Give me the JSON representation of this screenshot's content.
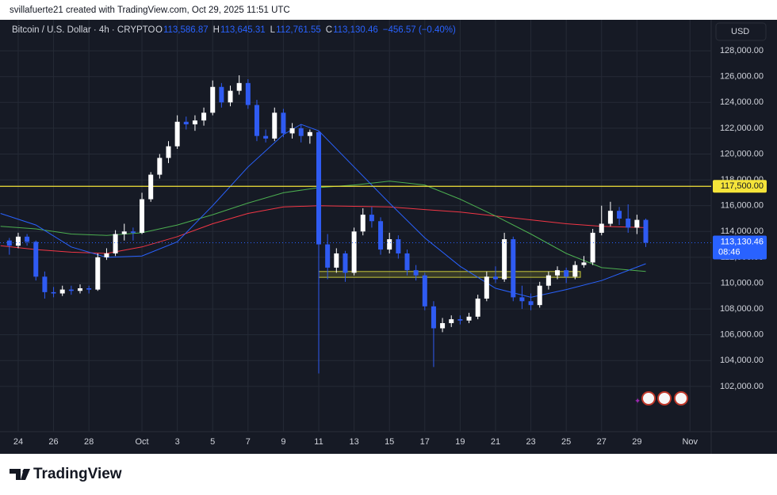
{
  "caption": "svillafuerte21 created with TradingView.com, Oct 29, 2025 11:51 UTC",
  "footer": "TradingView",
  "chart_data": {
    "type": "candlestick",
    "symbol": "Bitcoin / U.S. Dollar · 4h · CRYPTO",
    "ohlc": [
      {
        "key": "O",
        "text": "113,586.87"
      },
      {
        "key": "H",
        "text": "113,645.31"
      },
      {
        "key": "L",
        "text": "112,761.55"
      },
      {
        "key": "C",
        "text": "113,130.46"
      }
    ],
    "change": "−456.57 (−0.40%)",
    "currency": "USD",
    "up_color": "#ffffff",
    "down_color": "#2f5bf2",
    "grid": true,
    "ylim": [
      98800,
      130400
    ],
    "yticks": [
      {
        "value": 102000,
        "label": "102,000.00"
      },
      {
        "value": 104000,
        "label": "104,000.00"
      },
      {
        "value": 106000,
        "label": "106,000.00"
      },
      {
        "value": 108000,
        "label": "108,000.00"
      },
      {
        "value": 110000,
        "label": "110,000.00"
      },
      {
        "value": 112000,
        "label": "112,000.00"
      },
      {
        "value": 114000,
        "label": "114,000.00"
      },
      {
        "value": 116000,
        "label": "116,000.00"
      },
      {
        "value": 118000,
        "label": "118,000.00"
      },
      {
        "value": 120000,
        "label": "120,000.00"
      },
      {
        "value": 122000,
        "label": "122,000.00"
      },
      {
        "value": 124000,
        "label": "124,000.00"
      },
      {
        "value": 126000,
        "label": "126,000.00"
      },
      {
        "value": 128000,
        "label": "128,000.00"
      }
    ],
    "xlim": [
      -1.03,
      39.2
    ],
    "xticks": [
      {
        "value": 0,
        "label": "24"
      },
      {
        "value": 2,
        "label": "26"
      },
      {
        "value": 4,
        "label": "28"
      },
      {
        "value": 7,
        "label": "Oct"
      },
      {
        "value": 9,
        "label": "3"
      },
      {
        "value": 11,
        "label": "5"
      },
      {
        "value": 13,
        "label": "7"
      },
      {
        "value": 15,
        "label": "9"
      },
      {
        "value": 17,
        "label": "11"
      },
      {
        "value": 19,
        "label": "13"
      },
      {
        "value": 21,
        "label": "15"
      },
      {
        "value": 23,
        "label": "17"
      },
      {
        "value": 25,
        "label": "19"
      },
      {
        "value": 27,
        "label": "21"
      },
      {
        "value": 29,
        "label": "23"
      },
      {
        "value": 31,
        "label": "25"
      },
      {
        "value": 33,
        "label": "27"
      },
      {
        "value": 35,
        "label": "29"
      },
      {
        "value": 38,
        "label": "Nov"
      }
    ],
    "series": [
      {
        "x": [
          -0.5,
          0,
          0.5,
          1,
          1.5,
          2,
          2.5,
          3,
          3.5,
          4,
          4.5,
          5,
          5.5,
          6,
          6.5,
          7,
          7.5,
          8,
          8.5,
          9,
          9.5,
          10,
          10.5,
          11,
          11.5,
          12,
          12.5,
          13,
          13.5,
          14,
          14.5,
          15,
          15.5,
          16,
          16.5,
          17,
          17.5,
          18,
          18.5,
          19,
          19.5,
          20,
          20.5,
          21,
          21.5,
          22,
          22.5,
          23,
          23.5,
          24,
          24.5,
          25,
          25.5,
          26,
          26.5,
          27,
          27.5,
          28,
          28.5,
          29,
          29.5,
          30,
          30.5,
          31,
          31.5,
          32,
          32.5,
          33,
          33.5,
          34,
          34.5,
          35,
          35.5
        ],
        "open": [
          113300,
          112900,
          113600,
          113200,
          110500,
          109300,
          109200,
          109500,
          109400,
          109600,
          109500,
          112000,
          112300,
          113800,
          114000,
          113900,
          116500,
          118400,
          119700,
          120600,
          122500,
          122300,
          122600,
          123200,
          125200,
          124000,
          124900,
          125500,
          123800,
          121400,
          121200,
          123200,
          121600,
          122000,
          121400,
          121700,
          113000,
          111200,
          112300,
          110800,
          114000,
          115300,
          114800,
          112600,
          113400,
          112300,
          111000,
          110600,
          108200,
          106500,
          106900,
          107200,
          107100,
          107400,
          108800,
          110500,
          110300,
          113400,
          108900,
          108600,
          108300,
          109800,
          110600,
          111000,
          110500,
          111400,
          111600,
          113900,
          114600,
          115600,
          115000,
          114300,
          114900
        ],
        "high": [
          113500,
          113900,
          113800,
          113300,
          110900,
          109700,
          109800,
          109800,
          109900,
          109800,
          112300,
          112700,
          114100,
          114600,
          114300,
          117000,
          118600,
          120000,
          121000,
          123000,
          122900,
          123000,
          123600,
          125700,
          125500,
          125300,
          126100,
          125800,
          124200,
          121900,
          123600,
          123500,
          122400,
          122300,
          121900,
          121800,
          113800,
          112700,
          112500,
          114300,
          115800,
          115900,
          115100,
          113900,
          113700,
          112600,
          111400,
          110800,
          108600,
          107300,
          107500,
          107500,
          107700,
          109100,
          110900,
          111300,
          113900,
          113600,
          109800,
          109200,
          110100,
          110900,
          111300,
          111200,
          111700,
          112100,
          114200,
          116000,
          116300,
          115900,
          116100,
          115300,
          115000
        ],
        "low": [
          112200,
          112700,
          112900,
          110200,
          108800,
          108900,
          109000,
          109100,
          109200,
          109200,
          109400,
          111800,
          112100,
          113300,
          113300,
          113800,
          116300,
          118100,
          119300,
          120400,
          121900,
          121800,
          122200,
          123000,
          123600,
          123700,
          124600,
          123500,
          121000,
          120900,
          121000,
          121300,
          121200,
          120900,
          120800,
          103000,
          110300,
          110800,
          110100,
          110600,
          113700,
          114300,
          112200,
          112300,
          111900,
          110600,
          110200,
          107900,
          103500,
          106200,
          106600,
          106800,
          106900,
          107200,
          108600,
          110000,
          110100,
          108600,
          108000,
          107900,
          108100,
          109500,
          110300,
          110000,
          110300,
          111200,
          111400,
          113700,
          114400,
          114500,
          113900,
          113800,
          112800
        ],
        "close": [
          112900,
          113600,
          113200,
          110500,
          109300,
          109200,
          109500,
          109400,
          109600,
          109500,
          112000,
          112300,
          113800,
          114000,
          113900,
          116500,
          118400,
          119700,
          120600,
          122500,
          122300,
          122600,
          123200,
          125200,
          124000,
          124900,
          125500,
          123800,
          121400,
          121200,
          123200,
          121600,
          122000,
          121400,
          121700,
          113000,
          111200,
          112300,
          110800,
          114000,
          115300,
          114800,
          112600,
          113400,
          112300,
          111000,
          110600,
          108200,
          106500,
          106900,
          107200,
          107100,
          107400,
          108800,
          110500,
          110300,
          113400,
          108900,
          108600,
          108300,
          109800,
          110600,
          111000,
          110500,
          111400,
          111600,
          113900,
          114600,
          115600,
          115000,
          114300,
          114900,
          113130.46
        ]
      }
    ],
    "lines": [
      {
        "color": "#f23645",
        "x": [
          -1,
          1,
          3,
          5,
          7,
          9,
          11,
          13,
          15,
          17,
          19,
          21,
          23,
          25,
          27,
          29,
          31,
          33,
          35.5
        ],
        "values": [
          112900,
          112600,
          112400,
          112300,
          112800,
          113600,
          114600,
          115400,
          115900,
          116000,
          115950,
          115900,
          115700,
          115500,
          115200,
          114900,
          114600,
          114400,
          114300
        ]
      },
      {
        "color": "#4caf50",
        "x": [
          -1,
          1,
          3,
          5,
          7,
          9,
          11,
          13,
          15,
          17,
          19,
          21,
          23,
          25,
          27,
          29,
          31,
          33,
          35.5
        ],
        "values": [
          114400,
          114200,
          113800,
          113700,
          113900,
          114500,
          115300,
          116200,
          117000,
          117400,
          117600,
          117900,
          117600,
          116500,
          115200,
          113800,
          112300,
          111200,
          110900
        ]
      },
      {
        "color": "#2962ff",
        "x": [
          -1,
          1,
          3,
          5,
          7,
          9,
          11,
          13,
          15,
          16,
          17,
          19,
          21,
          23,
          25,
          27,
          29,
          31,
          33,
          35.5
        ],
        "values": [
          115400,
          114500,
          112800,
          112000,
          112100,
          113200,
          116000,
          119000,
          121500,
          122300,
          121800,
          119000,
          116200,
          113500,
          111300,
          109600,
          108900,
          109500,
          110200,
          111500
        ]
      }
    ],
    "hline": {
      "value": 117500,
      "label": "117,500.00",
      "color": "#f5e43a"
    },
    "zone": {
      "low": 110450,
      "high": 110900,
      "x_start": 17,
      "x_end": 31.8,
      "color": "#c8c83a"
    },
    "last_price": {
      "value": 113130.46,
      "label": "113,130.46",
      "countdown": "08:46",
      "color": "#2962ff"
    }
  }
}
